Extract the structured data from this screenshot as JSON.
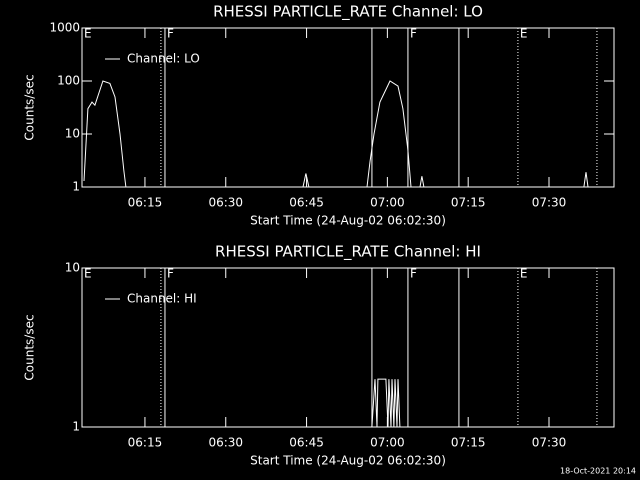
{
  "chart_data": [
    {
      "type": "line",
      "title": "RHESSI PARTICLE_RATE Channel: LO",
      "xlabel": "Start Time (24-Aug-02 06:02:30)",
      "ylabel": "Counts/sec",
      "log_y": true,
      "ylim": [
        1,
        1000
      ],
      "yticks": [
        1,
        10,
        100,
        1000
      ],
      "xlim": [
        "06:03:19",
        "07:42:04"
      ],
      "xticks": [
        "06:15",
        "06:30",
        "06:45",
        "07:00",
        "07:15",
        "07:30"
      ],
      "legend": "top-left",
      "series": [
        {
          "name": "Channel: LO",
          "color": "#ffffff",
          "x": [
            "06:03:41",
            "06:04:25",
            "06:05:10",
            "06:05:43",
            "06:07:12",
            "06:08:30",
            "06:09:26",
            "06:10:22",
            "06:11:06",
            "06:11:28",
            "06:44:20",
            "06:44:53",
            "06:45:26",
            "06:56:13",
            "06:56:46",
            "06:57:31",
            "06:58:37",
            "07:00:29",
            "07:01:58",
            "07:02:53",
            "07:03:49",
            "07:04:23",
            "07:06:03",
            "07:06:25",
            "07:06:47",
            "07:36:29",
            "07:36:52",
            "07:37:14",
            "07:42:04"
          ],
          "values": [
            1.3,
            30,
            40,
            35,
            100,
            90,
            50,
            10,
            2,
            1,
            1,
            1.8,
            1,
            1,
            3,
            10,
            40,
            100,
            80,
            30,
            5,
            1,
            1,
            1.6,
            1,
            1,
            1.9,
            1,
            1
          ]
        }
      ],
      "lines": [
        {
          "time": "06:17:58",
          "style": "dotted"
        },
        {
          "time": "06:18:43",
          "style": "solid"
        },
        {
          "time": "06:57:08",
          "style": "solid"
        },
        {
          "time": "07:03:49",
          "style": "solid"
        },
        {
          "time": "07:13:17",
          "style": "solid"
        },
        {
          "time": "07:24:14",
          "style": "dotted"
        },
        {
          "time": "07:38:54",
          "style": "dotted"
        }
      ],
      "flags": [
        {
          "time": "06:03:41",
          "label": "E"
        },
        {
          "time": "06:19:05",
          "label": "F"
        },
        {
          "time": "07:04:12",
          "label": "F"
        },
        {
          "time": "07:24:36",
          "label": "E"
        }
      ]
    },
    {
      "type": "line",
      "title": "RHESSI PARTICLE_RATE Channel: HI",
      "xlabel": "Start Time (24-Aug-02 06:02:30)",
      "ylabel": "Counts/sec",
      "log_y": true,
      "ylim": [
        1,
        10
      ],
      "yticks": [
        1,
        10
      ],
      "xlim": [
        "06:03:19",
        "07:42:04"
      ],
      "xticks": [
        "06:15",
        "06:30",
        "06:45",
        "07:00",
        "07:15",
        "07:30"
      ],
      "legend": "top-left",
      "series": [
        {
          "name": "Channel: HI",
          "color": "#ffffff",
          "x": [
            "06:03:19",
            "06:57:08",
            "06:57:42",
            "06:58:04",
            "06:58:15",
            "06:59:44",
            "07:00:07",
            "07:00:17",
            "07:00:40",
            "07:00:51",
            "07:01:13",
            "07:01:25",
            "07:01:47",
            "07:01:58",
            "07:02:20",
            "07:42:04"
          ],
          "values": [
            1,
            1,
            2,
            1,
            2,
            2,
            1,
            2,
            1,
            2,
            1,
            2,
            1,
            2,
            1,
            1
          ]
        }
      ],
      "lines": [
        {
          "time": "06:17:58",
          "style": "dotted"
        },
        {
          "time": "06:18:43",
          "style": "solid"
        },
        {
          "time": "06:57:08",
          "style": "solid"
        },
        {
          "time": "07:03:49",
          "style": "solid"
        },
        {
          "time": "07:13:17",
          "style": "solid"
        },
        {
          "time": "07:24:14",
          "style": "dotted"
        },
        {
          "time": "07:38:54",
          "style": "dotted"
        }
      ],
      "flags": [
        {
          "time": "06:03:41",
          "label": "E"
        },
        {
          "time": "06:19:05",
          "label": "F"
        },
        {
          "time": "07:04:12",
          "label": "F"
        },
        {
          "time": "07:24:36",
          "label": "E"
        }
      ]
    }
  ],
  "footer": "18-Oct-2021 20:14"
}
